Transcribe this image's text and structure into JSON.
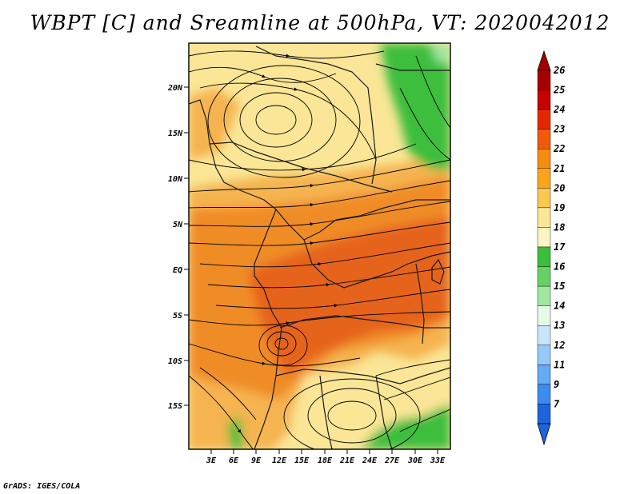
{
  "title": "WBPT [C] and Sreamline at 500hPa, VT: 2020042012",
  "credit": "GrADS: IGES/COLA",
  "lat_labels": [
    "20N",
    "15N",
    "10N",
    "5N",
    "EQ",
    "5S",
    "10S",
    "15S"
  ],
  "lon_labels": [
    "3E",
    "6E",
    "9E",
    "12E",
    "15E",
    "18E",
    "21E",
    "24E",
    "27E",
    "30E",
    "33E"
  ],
  "colorbar": {
    "labels": [
      "26",
      "25",
      "24",
      "23",
      "22",
      "21",
      "20",
      "19",
      "18",
      "17",
      "16",
      "15",
      "14",
      "13",
      "12",
      "11",
      "9",
      "7"
    ],
    "colors": [
      "#a50000",
      "#c80000",
      "#e62800",
      "#f05a0a",
      "#f58c0f",
      "#faa519",
      "#fac850",
      "#fae696",
      "#faf5c3",
      "#3cbe3c",
      "#64d264",
      "#a0e6a0",
      "#e6fae6",
      "#c8e6fa",
      "#96c8fa",
      "#64aaf5",
      "#3c8cf0",
      "#1e64dc"
    ],
    "top_arrow_color": "#a50000",
    "bottom_arrow_color": "#1e64dc"
  },
  "palette": {
    "pale": "#fae696",
    "light_orange": "#f5b450",
    "orange": "#f08c28",
    "red_orange": "#e6641e",
    "green": "#3cbe3c",
    "light_green": "#a0e6a0"
  }
}
